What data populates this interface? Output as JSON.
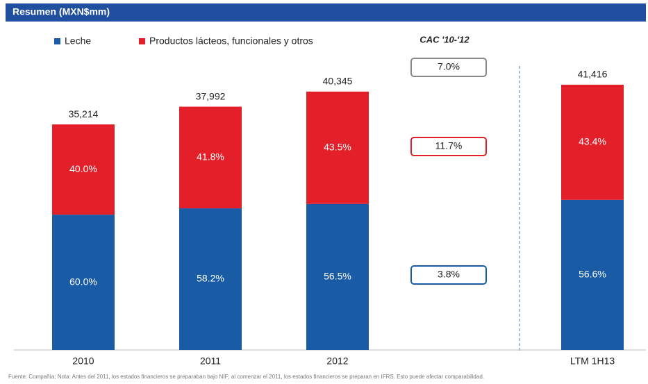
{
  "chart_data": {
    "type": "stacked_bar",
    "title": "Resumen (MXN$mm)",
    "categories": [
      "2010",
      "2011",
      "2012",
      "LTM 1H13"
    ],
    "series": [
      {
        "name": "Leche",
        "color": "#1a5ba6",
        "values": [
          60.0,
          58.2,
          56.5,
          56.6
        ],
        "value_labels": [
          "60.0%",
          "58.2%",
          "56.5%",
          "56.6%"
        ]
      },
      {
        "name": "Productos lácteos, funcionales y otros",
        "color": "#e3202a",
        "values": [
          40.0,
          41.8,
          43.5,
          43.4
        ],
        "value_labels": [
          "40.0%",
          "41.8%",
          "43.5%",
          "43.4%"
        ]
      }
    ],
    "totals": {
      "values": [
        35214,
        37992,
        40345,
        41416
      ],
      "value_labels": [
        "35,214",
        "37,992",
        "40,345",
        "41,416"
      ]
    },
    "cagr": {
      "title": "CAC '10-'12",
      "items": [
        {
          "label": "7.0%",
          "color": "#888888"
        },
        {
          "label": "11.7%",
          "color": "#e3202a"
        },
        {
          "label": "3.8%",
          "color": "#1a5ba6"
        }
      ]
    },
    "footnote": "Fuente: Compañía; Nota: Antes del 2011, los estados financieros se preparaban bajo NIF; al comenzar el 2011, los estados financieros se preparan en IFRS. Esto puede afectar comparabilidad."
  }
}
